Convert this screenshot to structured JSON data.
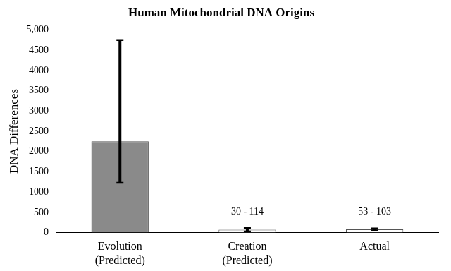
{
  "chart_data": {
    "type": "bar",
    "title": "Human Mitochondrial DNA Origins",
    "y_label": "DNA Differences",
    "categories": [
      [
        "Evolution",
        "(Predicted)"
      ],
      [
        "Creation",
        "(Predicted)"
      ],
      "Actual"
    ],
    "values": [
      2250,
      72,
      78
    ],
    "error_low": [
      1230,
      30,
      53
    ],
    "error_high": [
      4750,
      114,
      103
    ],
    "range_labels": [
      null,
      "30 - 114",
      "53 - 103"
    ],
    "colors": [
      "#8a8a8a",
      "#ffffff",
      "#ffffff"
    ],
    "ylim": [
      0,
      5000
    ],
    "yticks": [
      0,
      500,
      1000,
      1500,
      2000,
      2500,
      3000,
      3500,
      4000,
      4500,
      {
        "value": 5000,
        "label": "5,000"
      }
    ],
    "grid": false
  }
}
